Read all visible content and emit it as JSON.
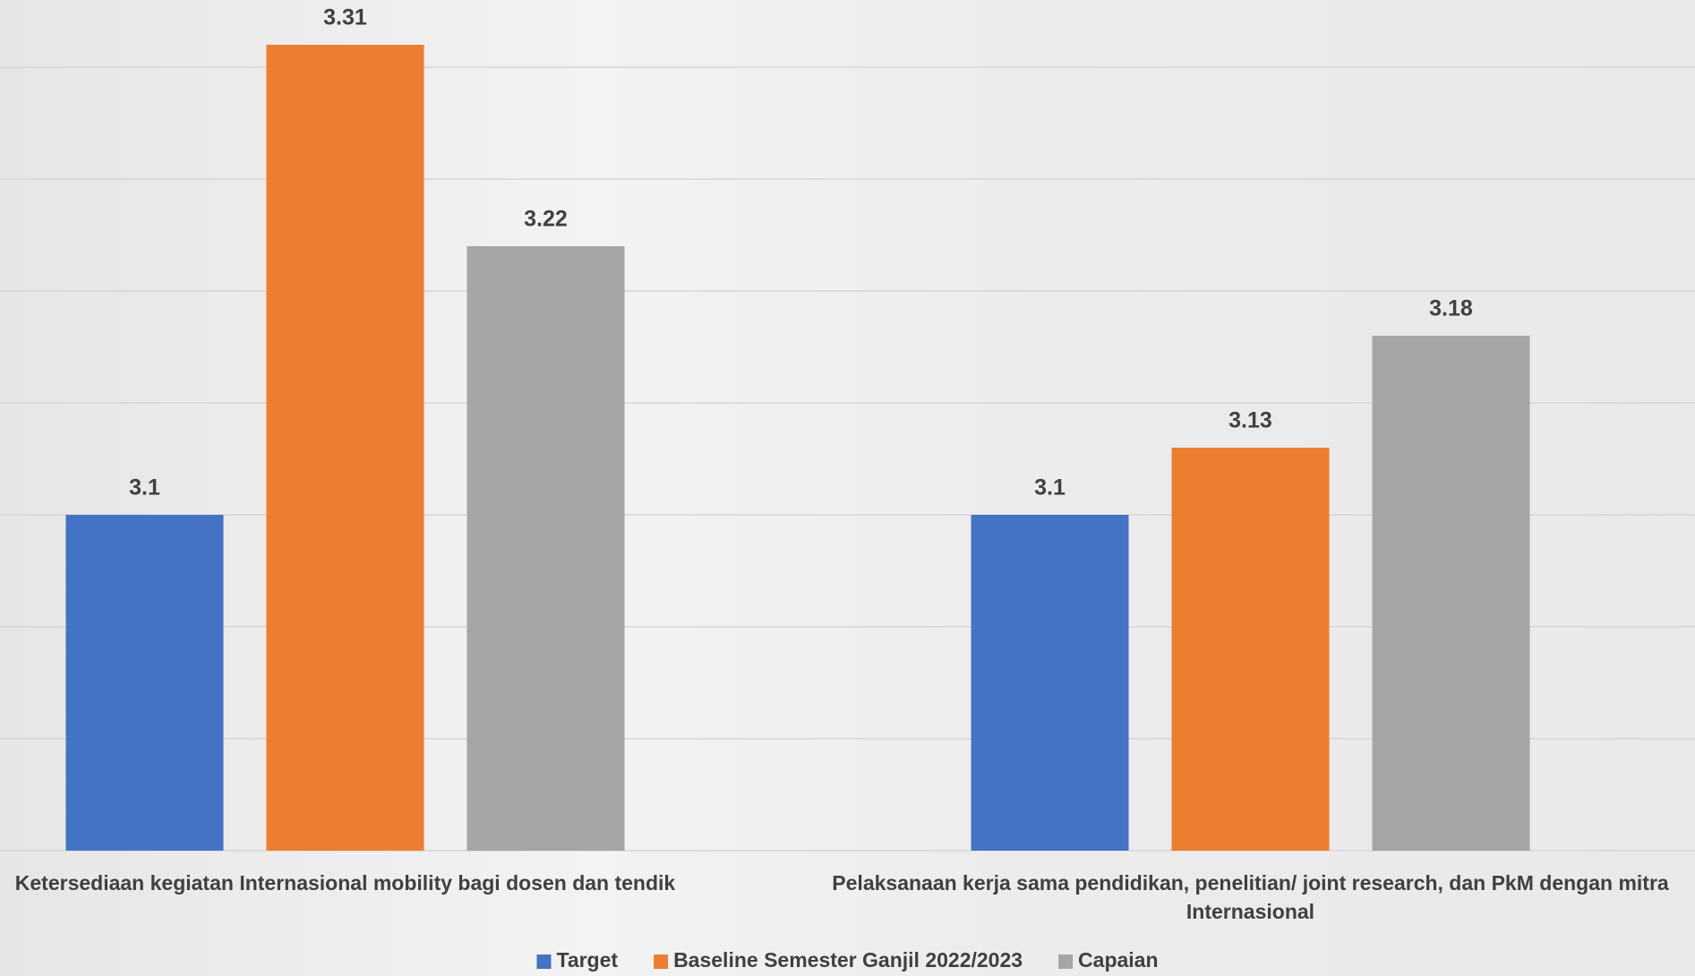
{
  "chart_data": {
    "type": "bar",
    "categories": [
      "Ketersediaan kegiatan Internasional mobility bagi dosen dan tendik",
      "Pelaksanaan kerja sama pendidikan, penelitian/ joint research, dan PkM dengan mitra Internasional"
    ],
    "series": [
      {
        "name": "Target",
        "color": "#4472c4",
        "values": [
          3.1,
          3.1
        ]
      },
      {
        "name": "Baseline Semester Ganjil 2022/2023",
        "color": "#ed7d31",
        "values": [
          3.31,
          3.13
        ]
      },
      {
        "name": "Capaian",
        "color": "#a5a5a5",
        "values": [
          3.22,
          3.18
        ]
      }
    ],
    "ylim": [
      2.95,
      3.3
    ],
    "yticks": [
      2.95,
      3.0,
      3.05,
      3.1,
      3.15,
      3.2,
      3.25,
      3.3
    ],
    "grid": true,
    "legend": "bottom"
  }
}
